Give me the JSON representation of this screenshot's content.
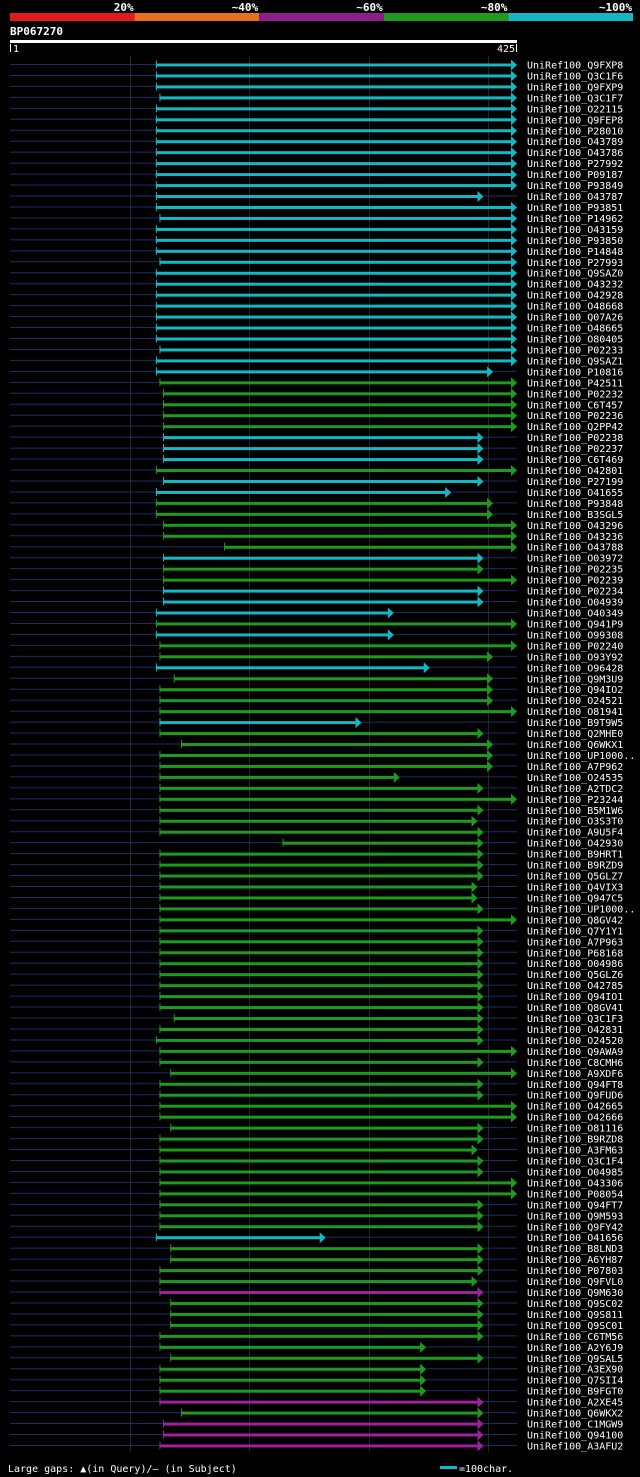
{
  "header": {
    "legend": [
      {
        "label": "20%",
        "color": "#e31a1c"
      },
      {
        "label": "~40%",
        "color": "#e9711b"
      },
      {
        "label": "~60%",
        "color": "#8b1e8b"
      },
      {
        "label": "~80%",
        "color": "#1e9a1e"
      },
      {
        "label": "~100%",
        "color": "#14b8c4"
      }
    ],
    "query_name": "BP067270",
    "ruler_start": "1",
    "ruler_end": "425"
  },
  "footer": {
    "gaps_text": "Large gaps: ▲(in Query)/— (in Subject)",
    "scale_text": "=100char."
  },
  "colors": {
    "cyan": "#14b8c4",
    "green": "#1e9a1e",
    "purple": "#a020a0",
    "subject": "#1c2e66",
    "tick": "#ffff66"
  },
  "chart_data": {
    "type": "alignment-overview",
    "query_length": 425,
    "alignments": [
      {
        "label": "UniRef100_Q9FXP8",
        "color": "cyan",
        "start": 123,
        "end": 425
      },
      {
        "label": "UniRef100_Q3C1F6",
        "color": "cyan",
        "start": 123,
        "end": 425
      },
      {
        "label": "UniRef100_Q9FXP9",
        "color": "cyan",
        "start": 123,
        "end": 425
      },
      {
        "label": "UniRef100_Q3C1F7",
        "color": "cyan",
        "start": 126,
        "end": 425
      },
      {
        "label": "UniRef100_O22115",
        "color": "cyan",
        "start": 123,
        "end": 425
      },
      {
        "label": "UniRef100_Q9FEP8",
        "color": "cyan",
        "start": 123,
        "end": 425
      },
      {
        "label": "UniRef100_P28010",
        "color": "cyan",
        "start": 123,
        "end": 425
      },
      {
        "label": "UniRef100_O43789",
        "color": "cyan",
        "start": 123,
        "end": 425
      },
      {
        "label": "UniRef100_O43786",
        "color": "cyan",
        "start": 123,
        "end": 425
      },
      {
        "label": "UniRef100_P27992",
        "color": "cyan",
        "start": 123,
        "end": 425
      },
      {
        "label": "UniRef100_P09187",
        "color": "cyan",
        "start": 123,
        "end": 425
      },
      {
        "label": "UniRef100_P93849",
        "color": "cyan",
        "start": 123,
        "end": 425
      },
      {
        "label": "UniRef100_O43787",
        "color": "cyan",
        "start": 123,
        "end": 397
      },
      {
        "label": "UniRef100_P93851",
        "color": "cyan",
        "start": 123,
        "end": 425
      },
      {
        "label": "UniRef100_P14962",
        "color": "cyan",
        "start": 126,
        "end": 425
      },
      {
        "label": "UniRef100_O43159",
        "color": "cyan",
        "start": 123,
        "end": 425
      },
      {
        "label": "UniRef100_P93850",
        "color": "cyan",
        "start": 123,
        "end": 425
      },
      {
        "label": "UniRef100_P14848",
        "color": "cyan",
        "start": 123,
        "end": 425
      },
      {
        "label": "UniRef100_P27993",
        "color": "cyan",
        "start": 126,
        "end": 425
      },
      {
        "label": "UniRef100_Q9SAZ0",
        "color": "cyan",
        "start": 123,
        "end": 425
      },
      {
        "label": "UniRef100_O43232",
        "color": "cyan",
        "start": 123,
        "end": 425
      },
      {
        "label": "UniRef100_O42928",
        "color": "cyan",
        "start": 123,
        "end": 425
      },
      {
        "label": "UniRef100_O48668",
        "color": "cyan",
        "start": 123,
        "end": 425
      },
      {
        "label": "UniRef100_Q07A26",
        "color": "cyan",
        "start": 123,
        "end": 425
      },
      {
        "label": "UniRef100_O48665",
        "color": "cyan",
        "start": 123,
        "end": 425
      },
      {
        "label": "UniRef100_O80405",
        "color": "cyan",
        "start": 123,
        "end": 425
      },
      {
        "label": "UniRef100_P02233",
        "color": "cyan",
        "start": 126,
        "end": 425
      },
      {
        "label": "UniRef100_Q9SAZ1",
        "color": "cyan",
        "start": 123,
        "end": 425
      },
      {
        "label": "UniRef100_P10816",
        "color": "cyan",
        "start": 123,
        "end": 405
      },
      {
        "label": "UniRef100_P42511",
        "color": "green",
        "start": 126,
        "end": 425
      },
      {
        "label": "UniRef100_P02232",
        "color": "green",
        "start": 129,
        "end": 425
      },
      {
        "label": "UniRef100_C6T457",
        "color": "green",
        "start": 129,
        "end": 425
      },
      {
        "label": "UniRef100_P02236",
        "color": "green",
        "start": 129,
        "end": 425
      },
      {
        "label": "UniRef100_Q2PP42",
        "color": "green",
        "start": 129,
        "end": 425
      },
      {
        "label": "UniRef100_P02238",
        "color": "cyan",
        "start": 129,
        "end": 397
      },
      {
        "label": "UniRef100_P02237",
        "color": "cyan",
        "start": 129,
        "end": 397
      },
      {
        "label": "UniRef100_C6T469",
        "color": "cyan",
        "start": 129,
        "end": 397
      },
      {
        "label": "UniRef100_O42801",
        "color": "green",
        "start": 123,
        "end": 425
      },
      {
        "label": "UniRef100_P27199",
        "color": "cyan",
        "start": 129,
        "end": 397
      },
      {
        "label": "UniRef100_O41655",
        "color": "cyan",
        "start": 123,
        "end": 370
      },
      {
        "label": "UniRef100_P93848",
        "color": "green",
        "start": 123,
        "end": 405
      },
      {
        "label": "UniRef100_B3SGL5",
        "color": "green",
        "start": 123,
        "end": 405
      },
      {
        "label": "UniRef100_O43296",
        "color": "green",
        "start": 129,
        "end": 425
      },
      {
        "label": "UniRef100_O43236",
        "color": "green",
        "start": 129,
        "end": 425
      },
      {
        "label": "UniRef100_O43788",
        "color": "green",
        "start": 180,
        "end": 425
      },
      {
        "label": "UniRef100_O03972",
        "color": "cyan",
        "start": 129,
        "end": 397
      },
      {
        "label": "UniRef100_P02235",
        "color": "green",
        "start": 129,
        "end": 397
      },
      {
        "label": "UniRef100_P02239",
        "color": "green",
        "start": 129,
        "end": 425
      },
      {
        "label": "UniRef100_P02234",
        "color": "cyan",
        "start": 129,
        "end": 397
      },
      {
        "label": "UniRef100_O04939",
        "color": "cyan",
        "start": 129,
        "end": 397
      },
      {
        "label": "UniRef100_O40349",
        "color": "cyan",
        "start": 123,
        "end": 322
      },
      {
        "label": "UniRef100_Q941P9",
        "color": "green",
        "start": 123,
        "end": 425
      },
      {
        "label": "UniRef100_O99308",
        "color": "cyan",
        "start": 123,
        "end": 322
      },
      {
        "label": "UniRef100_P02240",
        "color": "green",
        "start": 126,
        "end": 425
      },
      {
        "label": "UniRef100_O93Y92",
        "color": "green",
        "start": 126,
        "end": 405
      },
      {
        "label": "UniRef100_O96428",
        "color": "cyan",
        "start": 123,
        "end": 352
      },
      {
        "label": "UniRef100_Q9M3U9",
        "color": "green",
        "start": 138,
        "end": 405
      },
      {
        "label": "UniRef100_Q94IO2",
        "color": "green",
        "start": 126,
        "end": 405
      },
      {
        "label": "UniRef100_O24521",
        "color": "green",
        "start": 126,
        "end": 405
      },
      {
        "label": "UniRef100_O81941",
        "color": "green",
        "start": 126,
        "end": 425
      },
      {
        "label": "UniRef100_B9T9W5",
        "color": "cyan",
        "start": 126,
        "end": 295
      },
      {
        "label": "UniRef100_Q2MHE0",
        "color": "green",
        "start": 126,
        "end": 397
      },
      {
        "label": "UniRef100_Q6WKX1",
        "color": "green",
        "start": 144,
        "end": 405
      },
      {
        "label": "UniRef100_UP1000..",
        "color": "green",
        "start": 126,
        "end": 405
      },
      {
        "label": "UniRef100_A7P962",
        "color": "green",
        "start": 126,
        "end": 405
      },
      {
        "label": "UniRef100_O24535",
        "color": "green",
        "start": 126,
        "end": 327
      },
      {
        "label": "UniRef100_A2TDC2",
        "color": "green",
        "start": 126,
        "end": 397
      },
      {
        "label": "UniRef100_P23244",
        "color": "green",
        "start": 126,
        "end": 425
      },
      {
        "label": "UniRef100_B5M1W6",
        "color": "green",
        "start": 126,
        "end": 397
      },
      {
        "label": "UniRef100_O3S3T0",
        "color": "green",
        "start": 126,
        "end": 392
      },
      {
        "label": "UniRef100_A9U5F4",
        "color": "green",
        "start": 126,
        "end": 397
      },
      {
        "label": "UniRef100_O42930",
        "color": "green",
        "start": 229,
        "end": 397
      },
      {
        "label": "UniRef100_B9HRT1",
        "color": "green",
        "start": 126,
        "end": 397
      },
      {
        "label": "UniRef100_B9RZD9",
        "color": "green",
        "start": 126,
        "end": 397
      },
      {
        "label": "UniRef100_Q5GLZ7",
        "color": "green",
        "start": 126,
        "end": 397
      },
      {
        "label": "UniRef100_Q4VIX3",
        "color": "green",
        "start": 126,
        "end": 392
      },
      {
        "label": "UniRef100_Q947C5",
        "color": "green",
        "start": 126,
        "end": 392
      },
      {
        "label": "UniRef100_UP1000..",
        "color": "green",
        "start": 126,
        "end": 397
      },
      {
        "label": "UniRef100_Q8GV42",
        "color": "green",
        "start": 126,
        "end": 425
      },
      {
        "label": "UniRef100_Q7Y1Y1",
        "color": "green",
        "start": 126,
        "end": 397
      },
      {
        "label": "UniRef100_A7P963",
        "color": "green",
        "start": 126,
        "end": 397
      },
      {
        "label": "UniRef100_P68168",
        "color": "green",
        "start": 126,
        "end": 397
      },
      {
        "label": "UniRef100_O04986",
        "color": "green",
        "start": 126,
        "end": 397
      },
      {
        "label": "UniRef100_Q5GLZ6",
        "color": "green",
        "start": 126,
        "end": 397
      },
      {
        "label": "UniRef100_O42785",
        "color": "green",
        "start": 126,
        "end": 397
      },
      {
        "label": "UniRef100_Q94IO1",
        "color": "green",
        "start": 126,
        "end": 397
      },
      {
        "label": "UniRef100_Q8GV41",
        "color": "green",
        "start": 126,
        "end": 397
      },
      {
        "label": "UniRef100_Q3C1F3",
        "color": "green",
        "start": 138,
        "end": 397
      },
      {
        "label": "UniRef100_O42831",
        "color": "green",
        "start": 126,
        "end": 397
      },
      {
        "label": "UniRef100_O24520",
        "color": "green",
        "start": 123,
        "end": 397
      },
      {
        "label": "UniRef100_Q9AWA9",
        "color": "green",
        "start": 126,
        "end": 425
      },
      {
        "label": "UniRef100_C8CMH6",
        "color": "green",
        "start": 126,
        "end": 397
      },
      {
        "label": "UniRef100_A9XDF6",
        "color": "green",
        "start": 135,
        "end": 425
      },
      {
        "label": "UniRef100_Q94FT8",
        "color": "green",
        "start": 126,
        "end": 397
      },
      {
        "label": "UniRef100_Q9FUD6",
        "color": "green",
        "start": 126,
        "end": 397
      },
      {
        "label": "UniRef100_O42665",
        "color": "green",
        "start": 126,
        "end": 425
      },
      {
        "label": "UniRef100_O42666",
        "color": "green",
        "start": 126,
        "end": 425
      },
      {
        "label": "UniRef100_O81116",
        "color": "green",
        "start": 135,
        "end": 397
      },
      {
        "label": "UniRef100_B9RZD8",
        "color": "green",
        "start": 126,
        "end": 397
      },
      {
        "label": "UniRef100_A3FM63",
        "color": "green",
        "start": 126,
        "end": 392
      },
      {
        "label": "UniRef100_Q3C1F4",
        "color": "green",
        "start": 126,
        "end": 397
      },
      {
        "label": "UniRef100_O04985",
        "color": "green",
        "start": 126,
        "end": 397
      },
      {
        "label": "UniRef100_O43306",
        "color": "green",
        "start": 126,
        "end": 425
      },
      {
        "label": "UniRef100_P08054",
        "color": "green",
        "start": 126,
        "end": 425
      },
      {
        "label": "UniRef100_Q94FT7",
        "color": "green",
        "start": 126,
        "end": 397
      },
      {
        "label": "UniRef100_Q9M593",
        "color": "green",
        "start": 126,
        "end": 397
      },
      {
        "label": "UniRef100_Q9FY42",
        "color": "green",
        "start": 126,
        "end": 397
      },
      {
        "label": "UniRef100_O41656",
        "color": "cyan",
        "start": 123,
        "end": 265
      },
      {
        "label": "UniRef100_B8LND3",
        "color": "green",
        "start": 135,
        "end": 397
      },
      {
        "label": "UniRef100_A6YH87",
        "color": "green",
        "start": 135,
        "end": 397
      },
      {
        "label": "UniRef100_P07803",
        "color": "green",
        "start": 126,
        "end": 397
      },
      {
        "label": "UniRef100_Q9FVL0",
        "color": "green",
        "start": 126,
        "end": 392
      },
      {
        "label": "UniRef100_Q9M630",
        "color": "purple",
        "start": 126,
        "end": 397
      },
      {
        "label": "UniRef100_Q9SC02",
        "color": "green",
        "start": 135,
        "end": 397
      },
      {
        "label": "UniRef100_Q9S811",
        "color": "green",
        "start": 135,
        "end": 397
      },
      {
        "label": "UniRef100_Q9SC01",
        "color": "green",
        "start": 135,
        "end": 397
      },
      {
        "label": "UniRef100_C6TM56",
        "color": "green",
        "start": 126,
        "end": 397
      },
      {
        "label": "UniRef100_A2Y6J9",
        "color": "green",
        "start": 126,
        "end": 349
      },
      {
        "label": "UniRef100_Q9SAL5",
        "color": "green",
        "start": 135,
        "end": 397
      },
      {
        "label": "UniRef100_A3EX90",
        "color": "green",
        "start": 126,
        "end": 349
      },
      {
        "label": "UniRef100_Q7SII4",
        "color": "green",
        "start": 126,
        "end": 349
      },
      {
        "label": "UniRef100_B9FGT0",
        "color": "green",
        "start": 126,
        "end": 349
      },
      {
        "label": "UniRef100_A2XE45",
        "color": "purple",
        "start": 126,
        "end": 397
      },
      {
        "label": "UniRef100_Q6WKX2",
        "color": "green",
        "start": 144,
        "end": 397
      },
      {
        "label": "UniRef100_C1MGW9",
        "color": "purple",
        "start": 129,
        "end": 397
      },
      {
        "label": "UniRef100_Q94100",
        "color": "purple",
        "start": 129,
        "end": 397
      },
      {
        "label": "UniRef100_A3AFU2",
        "color": "purple",
        "start": 126,
        "end": 397
      }
    ]
  }
}
